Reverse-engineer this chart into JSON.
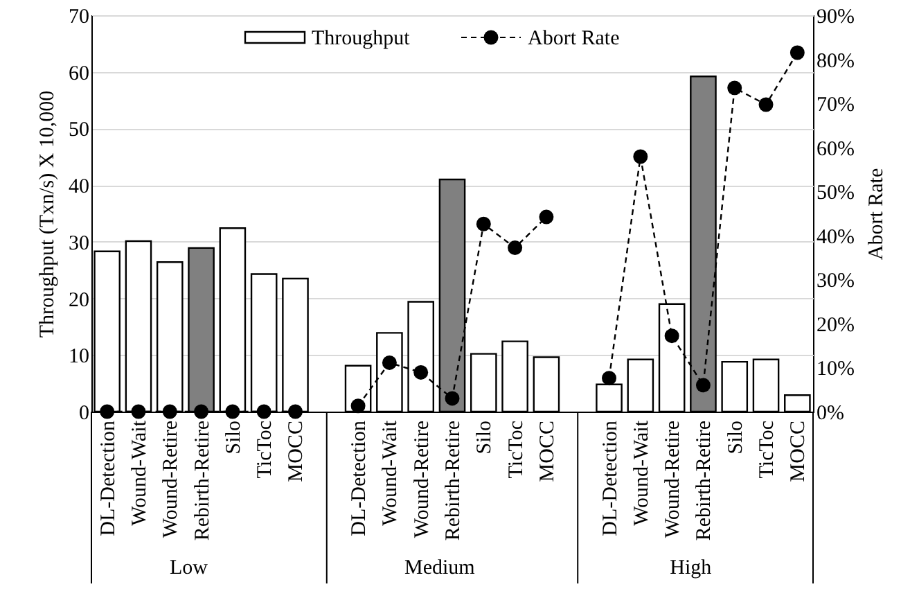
{
  "chart_data": {
    "type": "bar",
    "categories": [
      "DL-Detection",
      "Wound-Wait",
      "Wound-Retire",
      "Rebirth-Retire",
      "Silo",
      "TicToc",
      "MOCC",
      null,
      "DL-Detection",
      "Wound-Wait",
      "Wound-Retire",
      "Rebirth-Retire",
      "Silo",
      "TicToc",
      "MOCC",
      null,
      "DL-Detection",
      "Wound-Wait",
      "Wound-Retire",
      "Rebirth-Retire",
      "Silo",
      "TicToc",
      "MOCC"
    ],
    "series": [
      {
        "name": "Throughput",
        "color": "#ffffff",
        "colors": [
          "#ffffff",
          "#ffffff",
          "#ffffff",
          "#808080",
          "#ffffff",
          "#ffffff",
          "#ffffff",
          null,
          "#ffffff",
          "#ffffff",
          "#ffffff",
          "#808080",
          "#ffffff",
          "#ffffff",
          "#ffffff",
          null,
          "#ffffff",
          "#ffffff",
          "#ffffff",
          "#808080",
          "#ffffff",
          "#ffffff",
          "#ffffff"
        ],
        "values": [
          28.3,
          30.1,
          26.4,
          28.9,
          32.4,
          24.3,
          23.5,
          null,
          8.1,
          13.9,
          19.4,
          41.0,
          10.2,
          12.4,
          9.6,
          null,
          4.8,
          9.2,
          19.0,
          59.2,
          8.8,
          9.2,
          2.9
        ]
      },
      {
        "name": "Abort Rate",
        "type": "line",
        "axis": "y2",
        "color": "#000000",
        "marker": "circle",
        "line_style": "dashed",
        "values": [
          0,
          0,
          0,
          0,
          0,
          0,
          0,
          null,
          1.3,
          11.1,
          8.9,
          3.0,
          42.6,
          37.2,
          44.2,
          null,
          7.6,
          57.9,
          17.2,
          6.0,
          73.5,
          69.7,
          81.5
        ]
      }
    ],
    "ylabel": "Throughput (Txn/s) X 10,000",
    "y2label": "Abort Rate",
    "ylim": [
      0,
      70
    ],
    "yticks": [
      0,
      10,
      20,
      30,
      40,
      50,
      60,
      70
    ],
    "y2lim": [
      0,
      90
    ],
    "y2ticks": [
      {
        "value": 0,
        "label": "0%"
      },
      {
        "value": 10,
        "label": "10%"
      },
      {
        "value": 20,
        "label": "20%"
      },
      {
        "value": 30,
        "label": "30%"
      },
      {
        "value": 40,
        "label": "40%"
      },
      {
        "value": 50,
        "label": "50%"
      },
      {
        "value": 60,
        "label": "60%"
      },
      {
        "value": 70,
        "label": "70%"
      },
      {
        "value": 80,
        "label": "80%"
      },
      {
        "value": 90,
        "label": "90%"
      }
    ],
    "annotations": [
      "Low",
      "Medium",
      "High"
    ],
    "grid": "y",
    "legend": "top right"
  }
}
